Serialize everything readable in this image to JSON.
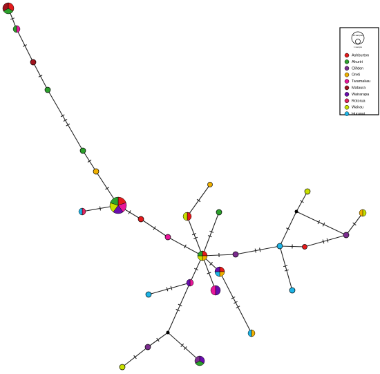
{
  "legend": {
    "scale_labels": [
      "10 samples",
      "1 sample"
    ],
    "items": [
      {
        "name": "Ashburton",
        "color": "#e41a1c"
      },
      {
        "name": "Ahuriri",
        "color": "#2ca02c"
      },
      {
        "name": "Clifden",
        "color": "#7b2d8e"
      },
      {
        "name": "Oreti",
        "color": "#f0b000"
      },
      {
        "name": "Taramakau",
        "color": "#e8169a"
      },
      {
        "name": "Mataura",
        "color": "#a0141e"
      },
      {
        "name": "Wairarapa",
        "color": "#6a0dad"
      },
      {
        "name": "Rotorua",
        "color": "#e0245e"
      },
      {
        "name": "Wairau",
        "color": "#c8e000"
      },
      {
        "name": "Hurunui",
        "color": "#1eb4e6"
      }
    ]
  }
}
